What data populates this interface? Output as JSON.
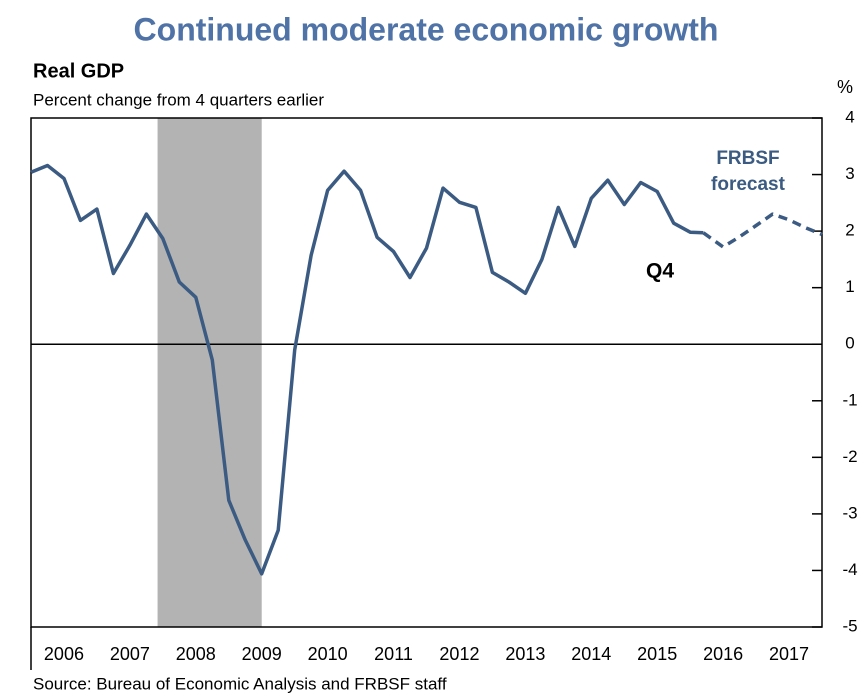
{
  "chart_data": {
    "type": "line",
    "title": "Continued moderate economic growth",
    "subtitle": "Real GDP",
    "y_label": "Percent change from 4 quarters earlier",
    "y_unit": "%",
    "source": "Source: Bureau of Economic Analysis and FRBSF staff",
    "annotations": [
      "FRBSF",
      "forecast",
      "Q4"
    ],
    "recession": [
      2007.92,
      2009.5
    ],
    "series": [
      {
        "color": "#3b5b82",
        "dashed": false,
        "x": [
          2006,
          2006.25,
          2006.5,
          2006.75,
          2007,
          2007.25,
          2007.5,
          2007.75,
          2008,
          2008.25,
          2008.5,
          2008.75,
          2009,
          2009.25,
          2009.5,
          2009.75,
          2010,
          2010.25,
          2010.5,
          2010.75,
          2011,
          2011.25,
          2011.5,
          2011.75,
          2012,
          2012.25,
          2012.5,
          2012.75,
          2013,
          2013.25,
          2013.5,
          2013.75,
          2014,
          2014.25,
          2014.5,
          2014.75,
          2015,
          2015.25,
          2015.5,
          2015.75,
          2016,
          2016.2
        ],
        "values": [
          3.04,
          3.16,
          2.93,
          2.19,
          2.39,
          1.25,
          1.75,
          2.3,
          1.87,
          1.1,
          0.83,
          -0.28,
          -2.76,
          -3.46,
          -4.06,
          -3.29,
          -0.1,
          1.57,
          2.72,
          3.06,
          2.72,
          1.89,
          1.64,
          1.18,
          1.7,
          2.76,
          2.51,
          2.42,
          1.27,
          1.1,
          0.9,
          1.5,
          2.42,
          1.73,
          2.58,
          2.9,
          2.47,
          2.86,
          2.7,
          2.14,
          1.98,
          1.97
        ]
      },
      {
        "color": "#3b5b82",
        "dashed": true,
        "x": [
          2016.2,
          2016.5,
          2016.75,
          2017,
          2017.25,
          2017.5,
          2017.75,
          2018
        ],
        "values": [
          1.97,
          1.72,
          1.9,
          2.1,
          2.3,
          2.2,
          2.06,
          1.94
        ]
      }
    ],
    "xlim": [
      2006,
      2018
    ],
    "xticks": [
      {
        "value": 2006.5,
        "label": "2006"
      },
      {
        "value": 2007.5,
        "label": "2007"
      },
      {
        "value": 2008.5,
        "label": "2008"
      },
      {
        "value": 2009.5,
        "label": "2009"
      },
      {
        "value": 2010.5,
        "label": "2010"
      },
      {
        "value": 2011.5,
        "label": "2011"
      },
      {
        "value": 2012.5,
        "label": "2012"
      },
      {
        "value": 2013.5,
        "label": "2013"
      },
      {
        "value": 2014.5,
        "label": "2014"
      },
      {
        "value": 2015.5,
        "label": "2015"
      },
      {
        "value": 2016.5,
        "label": "2016"
      },
      {
        "value": 2017.5,
        "label": "2017"
      }
    ],
    "ylim": [
      -5,
      4
    ],
    "yticks": [
      -5,
      -4,
      -3,
      -2,
      -1,
      0,
      1,
      2,
      3,
      4
    ],
    "zero_line": true
  }
}
